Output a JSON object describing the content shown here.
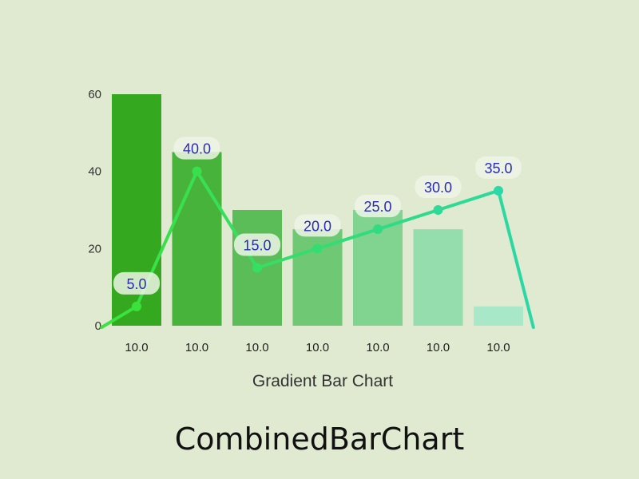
{
  "chart_data": {
    "type": "bar",
    "title": "",
    "xlabel": "Gradient Bar Chart",
    "ylabel": "",
    "ylim": [
      0,
      60
    ],
    "yticks": [
      0,
      20,
      40,
      60
    ],
    "grid": false,
    "categories": [
      "10.0",
      "10.0",
      "10.0",
      "10.0",
      "10.0",
      "10.0",
      "10.0"
    ],
    "series": [
      {
        "type": "bar",
        "values": [
          63,
          45,
          30,
          25,
          30,
          25,
          5
        ],
        "gradient_colors": [
          "#34a81f",
          "#a8e8c8"
        ]
      },
      {
        "type": "line",
        "values": [
          5.0,
          40.0,
          15.0,
          20.0,
          25.0,
          30.0,
          35.0
        ],
        "data_labels": [
          "5.0",
          "40.0",
          "15.0",
          "20.0",
          "25.0",
          "30.0",
          "35.0"
        ],
        "color_start": "#3ce23c",
        "color_end": "#2ad8a8",
        "label_color": "#2a2ab8"
      }
    ]
  },
  "caption": "CombinedBarChart"
}
